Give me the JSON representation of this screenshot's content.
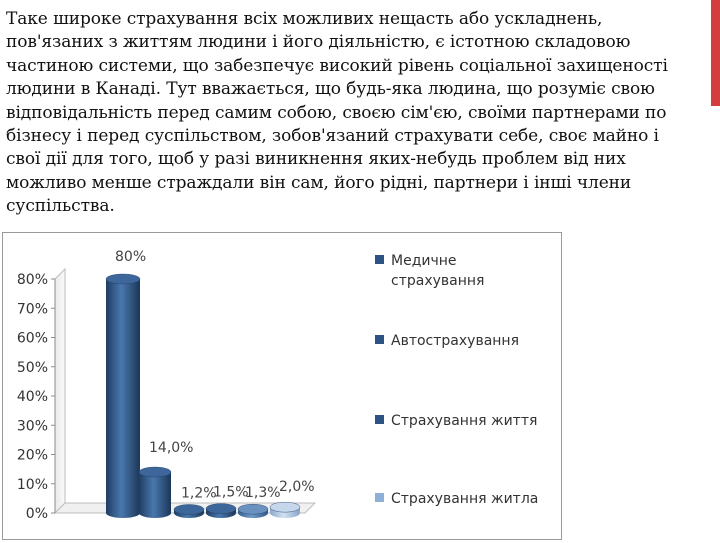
{
  "text": {
    "paragraph": "Таке широке страхування всіх можливих нещасть або ускладнень, пов'язаних з життям людини і його діяльністю, є істотною складовою частиною системи, що забезпечує високий рівень соціальної захищеності людини в Канаді. Тут вважається, що будь-яка людина, що розуміє свою відповідальність перед самим собою, своєю сім'єю, своїми партнерами по бізнесу і перед суспільством, зобов'язаний страхувати себе, своє майно і свої дії для того, щоб у разі виникнення яких-небудь проблем від них можливо менше страждали він сам, його рідні, партнери і інші члени суспільства."
  },
  "colors": {
    "accent": "#d33d3d",
    "bar_dark": "#2c5383",
    "bar_light": "#8fb0d6"
  },
  "chart_data": {
    "type": "bar",
    "style": "3d-cylinder",
    "title": "",
    "xlabel": "",
    "ylabel": "",
    "ylim": [
      0,
      80
    ],
    "y_ticks": [
      "0%",
      "10%",
      "20%",
      "30%",
      "40%",
      "50%",
      "60%",
      "70%",
      "80%"
    ],
    "grid": false,
    "legend_position": "right",
    "series": [
      {
        "name": "Медичне страхування",
        "value": 80,
        "label": "80%",
        "color": "#2c5383"
      },
      {
        "name": "Автострахування",
        "value": 14,
        "label": "14,0%",
        "color": "#2c5383"
      },
      {
        "name": "Страхування життя",
        "value": 1.2,
        "label": "1,2%",
        "color": "#2c5383"
      },
      {
        "name": "",
        "value": 1.5,
        "label": "1,5%",
        "color": "#2c5383"
      },
      {
        "name": "",
        "value": 1.3,
        "label": "1,3%",
        "color": "#4a73a6"
      },
      {
        "name": "Страхування житла",
        "value": 2.0,
        "label": "2,0%",
        "color": "#8fb0d6"
      }
    ],
    "legend": [
      {
        "text": "Медичне страхування",
        "color": "#2c5383"
      },
      {
        "text": "Автострахування",
        "color": "#2c5383"
      },
      {
        "text": "Страхування життя",
        "color": "#2c5383"
      },
      {
        "text": "Страхування житла",
        "color": "#8fb0d6"
      }
    ]
  }
}
